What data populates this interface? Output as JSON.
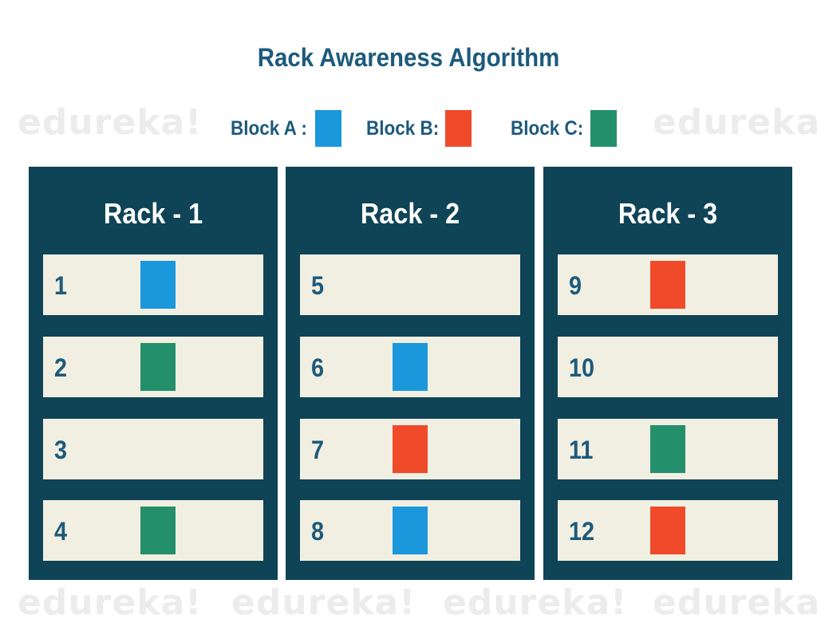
{
  "title": "Rack Awareness Algorithm",
  "watermark_text": "edureka!",
  "legend": [
    {
      "label": "Block A :",
      "color": "#1b97dc"
    },
    {
      "label": "Block B:",
      "color": "#ef4b2a"
    },
    {
      "label": "Block C:",
      "color": "#248f6b"
    }
  ],
  "colors": {
    "rack_bg": "#0e4456",
    "node_bg": "#f1efe2",
    "text_blue": "#1d5a7c",
    "block_a": "#1b97dc",
    "block_b": "#ef4b2a",
    "block_c": "#248f6b"
  },
  "racks": [
    {
      "label": "Rack - 1",
      "nodes": [
        {
          "number": "1",
          "block": "A"
        },
        {
          "number": "2",
          "block": "C"
        },
        {
          "number": "3",
          "block": null
        },
        {
          "number": "4",
          "block": "C"
        }
      ]
    },
    {
      "label": "Rack - 2",
      "nodes": [
        {
          "number": "5",
          "block": null
        },
        {
          "number": "6",
          "block": "A"
        },
        {
          "number": "7",
          "block": "B"
        },
        {
          "number": "8",
          "block": "A"
        }
      ]
    },
    {
      "label": "Rack - 3",
      "nodes": [
        {
          "number": "9",
          "block": "B"
        },
        {
          "number": "10",
          "block": null
        },
        {
          "number": "11",
          "block": "C"
        },
        {
          "number": "12",
          "block": "B"
        }
      ]
    }
  ]
}
